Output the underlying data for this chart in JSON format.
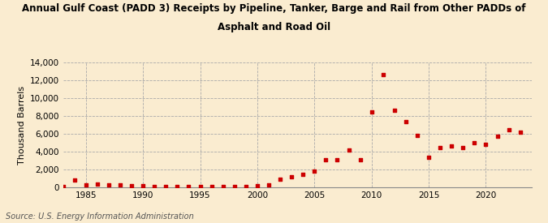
{
  "title1": "Annual Gulf Coast (PADD 3) Receipts by Pipeline, Tanker, Barge and Rail from Other PADDs of",
  "title2": "Asphalt and Road Oil",
  "ylabel": "Thousand Barrels",
  "source": "Source: U.S. Energy Information Administration",
  "background_color": "#faecd0",
  "plot_bg_color": "#faecd0",
  "marker_color": "#cc0000",
  "years": [
    1983,
    1984,
    1985,
    1986,
    1987,
    1988,
    1989,
    1990,
    1991,
    1992,
    1993,
    1994,
    1995,
    1996,
    1997,
    1998,
    1999,
    2000,
    2001,
    2002,
    2003,
    2004,
    2005,
    2006,
    2007,
    2008,
    2009,
    2010,
    2011,
    2012,
    2013,
    2014,
    2015,
    2016,
    2017,
    2018,
    2019,
    2020,
    2021,
    2022,
    2023
  ],
  "values": [
    50,
    800,
    300,
    350,
    300,
    250,
    200,
    150,
    100,
    50,
    50,
    100,
    50,
    50,
    50,
    50,
    100,
    200,
    300,
    900,
    1200,
    1500,
    1800,
    3100,
    3100,
    4200,
    3100,
    8500,
    12600,
    8600,
    7400,
    5800,
    3400,
    4500,
    4600,
    4500,
    5000,
    4800,
    5700,
    6500,
    6200
  ],
  "ylim": [
    0,
    14000
  ],
  "yticks": [
    0,
    2000,
    4000,
    6000,
    8000,
    10000,
    12000,
    14000
  ],
  "xlim": [
    1983,
    2024
  ],
  "xticks": [
    1985,
    1990,
    1995,
    2000,
    2005,
    2010,
    2015,
    2020
  ]
}
